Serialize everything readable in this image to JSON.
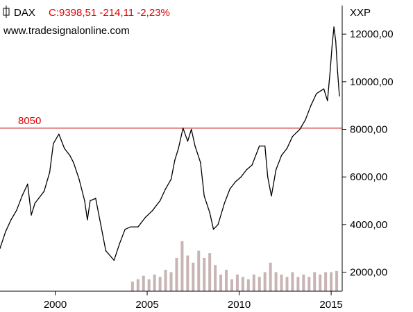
{
  "header": {
    "symbol": "DAX",
    "quote": "C:9398,51 -214,11 -2,23%",
    "url": "www.tradesignalonline.com",
    "exchange": "XXP"
  },
  "colors": {
    "price_line": "#000000",
    "quote_text": "#e00000",
    "reference_line": "#c00000",
    "volume_bars": "#c8b4b4",
    "axis": "#000000",
    "background": "#ffffff"
  },
  "chart_data": {
    "type": "line",
    "title": "",
    "xlabel": "",
    "ylabel": "",
    "xlim": [
      1997.0,
      2015.6
    ],
    "ylim": [
      1200,
      13200
    ],
    "x_ticks": [
      2000,
      2005,
      2010,
      2015
    ],
    "x_tick_labels": [
      "2000",
      "2005",
      "2010",
      "2015"
    ],
    "y_ticks": [
      2000,
      4000,
      6000,
      8000,
      10000,
      12000
    ],
    "y_tick_labels": [
      "2000,00",
      "4000,00",
      "6000,00",
      "8000,00",
      "10000,00",
      "12000,00"
    ],
    "grid": false,
    "series": [
      {
        "x": [
          1997.0,
          1997.3,
          1997.6,
          1997.9,
          1998.2,
          1998.5,
          1998.7,
          1998.9,
          1999.1,
          1999.4,
          1999.7,
          1999.9,
          2000.2,
          2000.5,
          2000.8,
          2001.0,
          2001.3,
          2001.6,
          2001.75,
          2001.9,
          2002.2,
          2002.5,
          2002.75,
          2003.2,
          2003.5,
          2003.8,
          2004.1,
          2004.5,
          2004.9,
          2005.3,
          2005.7,
          2006.0,
          2006.3,
          2006.5,
          2006.7,
          2006.95,
          2007.2,
          2007.4,
          2007.6,
          2007.9,
          2008.1,
          2008.4,
          2008.6,
          2008.85,
          2009.2,
          2009.5,
          2009.8,
          2010.1,
          2010.4,
          2010.7,
          2011.1,
          2011.4,
          2011.55,
          2011.75,
          2012.0,
          2012.3,
          2012.6,
          2012.9,
          2013.3,
          2013.6,
          2013.9,
          2014.2,
          2014.4,
          2014.6,
          2014.8,
          2014.95,
          2015.05,
          2015.15,
          2015.25,
          2015.35,
          2015.45
        ],
        "y": [
          3000,
          3700,
          4200,
          4600,
          5200,
          5700,
          4400,
          4900,
          5100,
          5400,
          6200,
          7400,
          7800,
          7200,
          6900,
          6600,
          5900,
          5000,
          4200,
          5000,
          5100,
          3900,
          2900,
          2500,
          3200,
          3800,
          3900,
          3900,
          4300,
          4600,
          5000,
          5500,
          5900,
          6700,
          7200,
          8050,
          7500,
          8000,
          7300,
          6600,
          5200,
          4500,
          3800,
          4000,
          4900,
          5500,
          5800,
          6000,
          6300,
          6500,
          7300,
          7300,
          6000,
          5200,
          6300,
          6900,
          7200,
          7700,
          8000,
          8400,
          9000,
          9500,
          9600,
          9700,
          9200,
          10500,
          11500,
          12300,
          11700,
          10400,
          9398
        ]
      }
    ],
    "volume": {
      "x": [
        2004.2,
        2004.5,
        2004.8,
        2005.1,
        2005.4,
        2005.7,
        2006.0,
        2006.3,
        2006.6,
        2006.9,
        2007.2,
        2007.5,
        2007.8,
        2008.1,
        2008.4,
        2008.7,
        2009.0,
        2009.3,
        2009.6,
        2009.9,
        2010.2,
        2010.5,
        2010.8,
        2011.1,
        2011.4,
        2011.7,
        2012.0,
        2012.3,
        2012.6,
        2012.9,
        2013.2,
        2013.5,
        2013.8,
        2014.1,
        2014.4,
        2014.7,
        2015.0,
        2015.3
      ],
      "y": [
        1600,
        1700,
        1850,
        1700,
        1900,
        1800,
        2100,
        2000,
        2600,
        3300,
        2700,
        2400,
        2900,
        2600,
        2800,
        2300,
        1900,
        2100,
        1700,
        1900,
        1800,
        1700,
        1900,
        1800,
        2000,
        2400,
        2000,
        1900,
        1800,
        2000,
        1800,
        1900,
        1800,
        2000,
        1900,
        2000,
        2000,
        2050
      ]
    },
    "annotations": [
      {
        "label": "8050",
        "y": 8050,
        "type": "horizontal-line"
      }
    ]
  }
}
